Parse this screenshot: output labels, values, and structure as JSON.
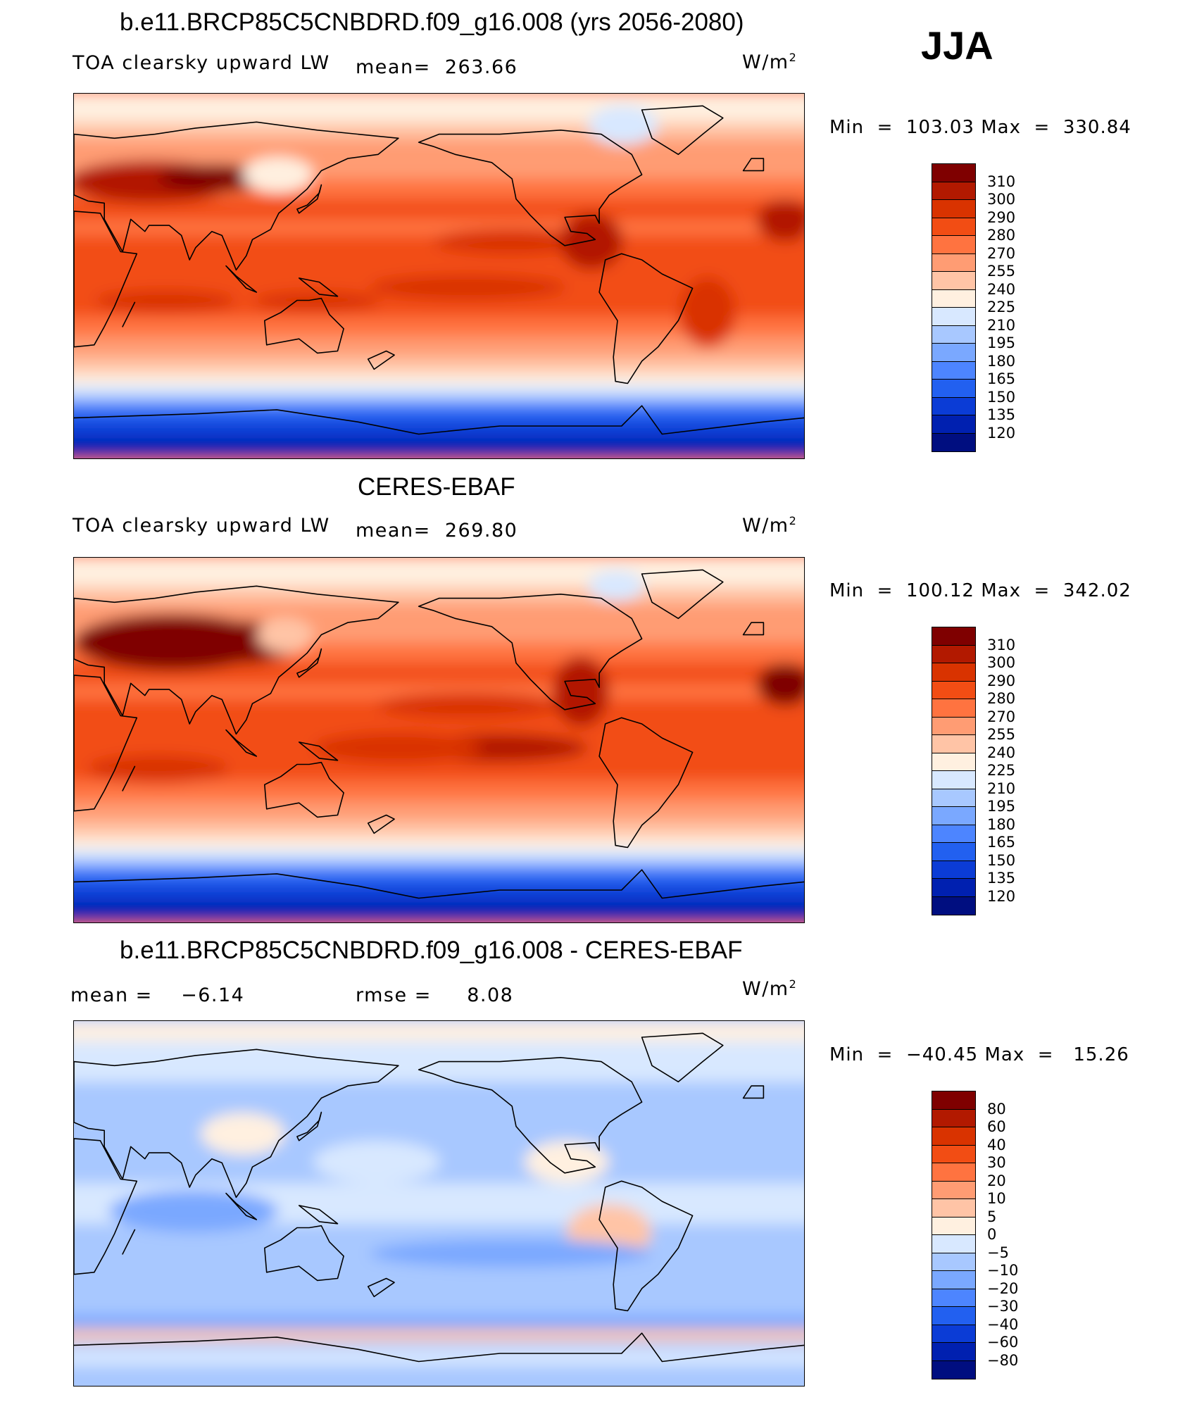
{
  "season": "JJA",
  "panels": [
    {
      "title": "b.e11.BRCP85C5CNBDRD.f09_g16.008 (yrs 2056-2080)",
      "variable": "TOA clearsky upward LW",
      "mean_label": "mean=",
      "mean_value": "263.66",
      "units": "W/m",
      "units_exp": "2",
      "min_label": "Min",
      "min_value": "103.03",
      "max_label": "Max",
      "max_value": "330.84",
      "colorbar": {
        "labels": [
          "310",
          "300",
          "290",
          "280",
          "270",
          "255",
          "240",
          "225",
          "210",
          "195",
          "180",
          "165",
          "150",
          "135",
          "120"
        ],
        "colors": [
          "#7f0000",
          "#b21900",
          "#d93300",
          "#f24d14",
          "#ff7340",
          "#ff9c73",
          "#ffc4a6",
          "#fff0e0",
          "#d8e8ff",
          "#a8c8ff",
          "#7aa8ff",
          "#4d85ff",
          "#2260f0",
          "#0b3cd6",
          "#0020b0",
          "#000e80"
        ]
      },
      "map_palette": [
        "#000e80",
        "#0020b0",
        "#0b3cd6",
        "#2260f0",
        "#4d85ff",
        "#7aa8ff",
        "#a8c8ff",
        "#d8e8ff",
        "#fff0e0",
        "#ffc4a6",
        "#ff9c73",
        "#ff7340",
        "#f24d14",
        "#d93300",
        "#b21900",
        "#7f0000"
      ]
    },
    {
      "title": "CERES-EBAF",
      "variable": "TOA clearsky upward LW",
      "mean_label": "mean=",
      "mean_value": "269.80",
      "units": "W/m",
      "units_exp": "2",
      "min_label": "Min",
      "min_value": "100.12",
      "max_label": "Max",
      "max_value": "342.02",
      "colorbar": {
        "labels": [
          "310",
          "300",
          "290",
          "280",
          "270",
          "255",
          "240",
          "225",
          "210",
          "195",
          "180",
          "165",
          "150",
          "135",
          "120"
        ],
        "colors": [
          "#7f0000",
          "#b21900",
          "#d93300",
          "#f24d14",
          "#ff7340",
          "#ff9c73",
          "#ffc4a6",
          "#fff0e0",
          "#d8e8ff",
          "#a8c8ff",
          "#7aa8ff",
          "#4d85ff",
          "#2260f0",
          "#0b3cd6",
          "#0020b0",
          "#000e80"
        ]
      }
    },
    {
      "title": "b.e11.BRCP85C5CNBDRD.f09_g16.008 - CERES-EBAF",
      "mean_label": "mean =",
      "mean_value": "−6.14",
      "rmse_label": "rmse =",
      "rmse_value": "8.08",
      "units": "W/m",
      "units_exp": "2",
      "min_label": "Min",
      "min_value": "−40.45",
      "max_label": "Max",
      "max_value": "15.26",
      "colorbar": {
        "labels": [
          "80",
          "60",
          "40",
          "30",
          "20",
          "10",
          "5",
          "0",
          "−5",
          "−10",
          "−20",
          "−30",
          "−40",
          "−60",
          "−80"
        ],
        "colors": [
          "#7f0000",
          "#b21900",
          "#d93300",
          "#f24d14",
          "#ff7340",
          "#ff9c73",
          "#ffc4a6",
          "#fff0e0",
          "#d8e8ff",
          "#a8c8ff",
          "#7aa8ff",
          "#4d85ff",
          "#2260f0",
          "#0b3cd6",
          "#0020b0",
          "#000e80"
        ]
      }
    }
  ]
}
